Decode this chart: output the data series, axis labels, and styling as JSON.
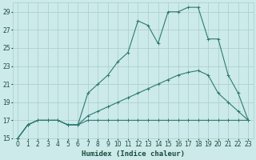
{
  "xlabel": "Humidex (Indice chaleur)",
  "bg_color": "#cceaea",
  "grid_color": "#aacccc",
  "line_color": "#2d7a6f",
  "xlim": [
    -0.5,
    23.5
  ],
  "ylim": [
    15,
    30
  ],
  "yticks": [
    15,
    17,
    19,
    21,
    23,
    25,
    27,
    29
  ],
  "xticks": [
    0,
    1,
    2,
    3,
    4,
    5,
    6,
    7,
    8,
    9,
    10,
    11,
    12,
    13,
    14,
    15,
    16,
    17,
    18,
    19,
    20,
    21,
    22,
    23
  ],
  "line_flat_x": [
    0,
    1,
    2,
    3,
    4,
    5,
    6,
    7,
    8,
    9,
    10,
    11,
    12,
    13,
    14,
    15,
    16,
    17,
    18,
    19,
    20,
    21,
    22,
    23
  ],
  "line_flat_y": [
    15,
    16.5,
    17,
    17,
    17,
    16.5,
    16.5,
    17,
    17,
    17,
    17,
    17,
    17,
    17,
    17,
    17,
    17,
    17,
    17,
    17,
    17,
    17,
    17,
    17
  ],
  "line_mid_x": [
    0,
    1,
    2,
    3,
    4,
    5,
    6,
    7,
    8,
    9,
    10,
    11,
    12,
    13,
    14,
    15,
    16,
    17,
    18,
    19,
    20,
    21,
    22,
    23
  ],
  "line_mid_y": [
    15,
    16.5,
    17,
    17,
    17,
    16.5,
    16.5,
    17.5,
    18,
    18.5,
    19,
    19.5,
    20,
    20.5,
    21,
    21.5,
    22,
    22.3,
    22.5,
    22,
    20,
    19,
    18,
    17
  ],
  "line_top_x": [
    0,
    1,
    2,
    3,
    4,
    5,
    6,
    7,
    8,
    9,
    10,
    11,
    12,
    13,
    14,
    15,
    16,
    17,
    18,
    19,
    20,
    21,
    22,
    23
  ],
  "line_top_y": [
    15,
    16.5,
    17,
    17,
    17,
    16.5,
    16.5,
    20,
    21,
    22,
    23.5,
    24.5,
    28,
    27.5,
    25.5,
    29,
    29,
    29.5,
    29.5,
    26,
    26,
    22,
    20,
    17
  ]
}
